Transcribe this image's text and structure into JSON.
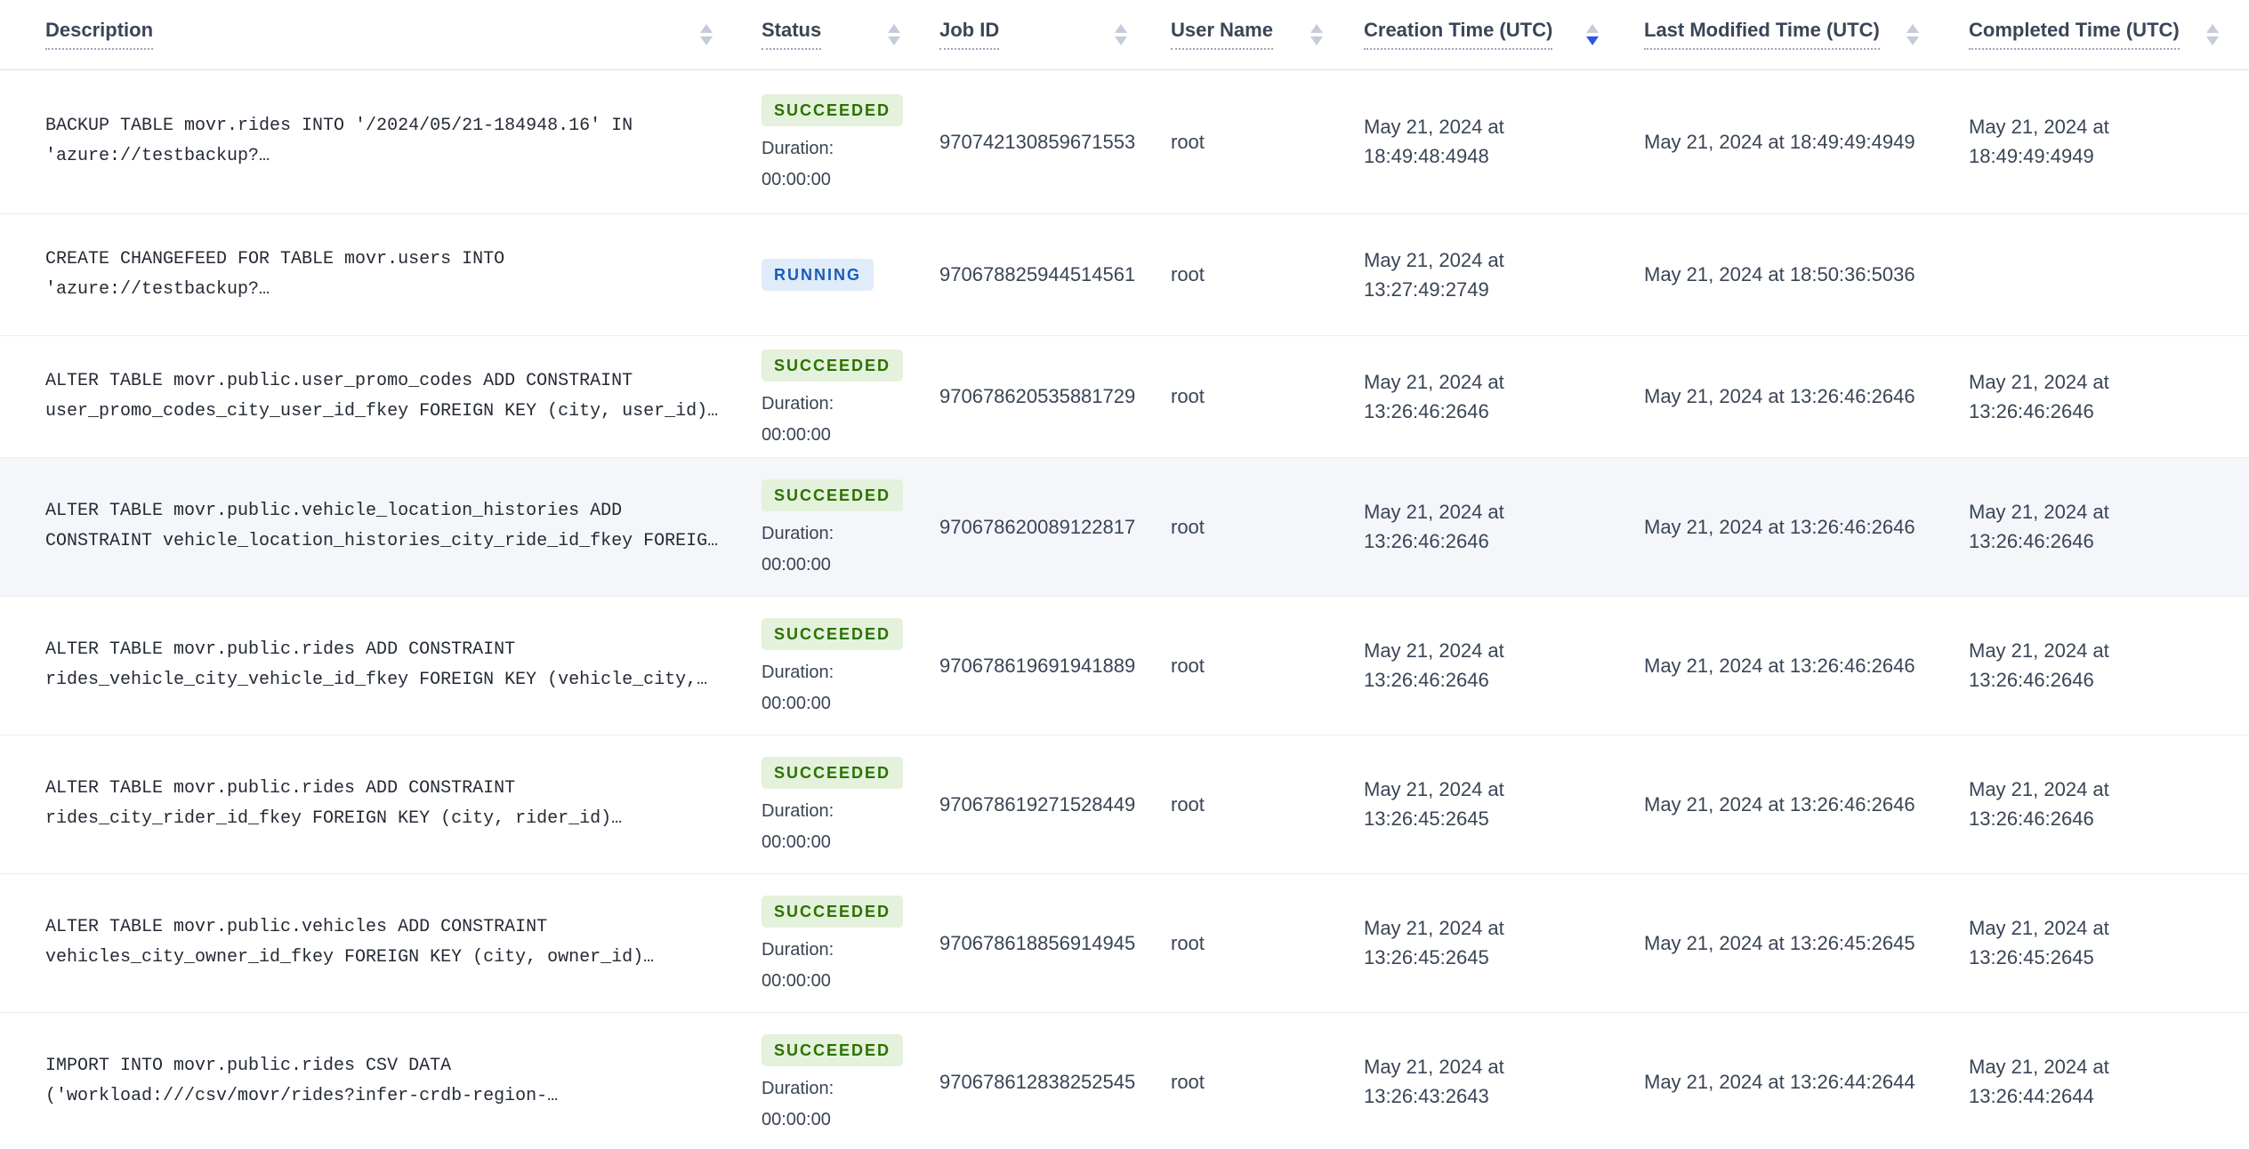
{
  "table": {
    "columns": [
      {
        "label": "Description"
      },
      {
        "label": "Status"
      },
      {
        "label": "Job ID"
      },
      {
        "label": "User Name"
      },
      {
        "label": "Creation Time (UTC)"
      },
      {
        "label": "Last Modified Time (UTC)"
      },
      {
        "label": "Completed Time (UTC)"
      }
    ],
    "sort": {
      "active_column": "Creation Time (UTC)",
      "direction": "desc"
    },
    "rows": [
      {
        "desc1": "BACKUP TABLE movr.rides INTO '/2024/05/21-184948.16' IN",
        "desc2": "'azure://testbackup?…",
        "status": "SUCCEEDED",
        "duration_label": "Duration:",
        "duration_value": "00:00:00",
        "job_id": "970742130859671553",
        "user": "root",
        "created": "May 21, 2024 at 18:49:48:4948",
        "modified": "May 21, 2024 at 18:49:49:4949",
        "completed": "May 21, 2024 at 18:49:49:4949"
      },
      {
        "desc1": "CREATE CHANGEFEED FOR TABLE movr.users INTO",
        "desc2": "'azure://testbackup?…",
        "status": "RUNNING",
        "duration_label": "",
        "duration_value": "",
        "job_id": "970678825944514561",
        "user": "root",
        "created": "May 21, 2024 at 13:27:49:2749",
        "modified": "May 21, 2024 at 18:50:36:5036",
        "completed": ""
      },
      {
        "desc1": "ALTER TABLE movr.public.user_promo_codes ADD CONSTRAINT",
        "desc2": "user_promo_codes_city_user_id_fkey FOREIGN KEY (city, user_id)…",
        "status": "SUCCEEDED",
        "duration_label": "Duration:",
        "duration_value": "00:00:00",
        "job_id": "970678620535881729",
        "user": "root",
        "created": "May 21, 2024 at 13:26:46:2646",
        "modified": "May 21, 2024 at 13:26:46:2646",
        "completed": "May 21, 2024 at 13:26:46:2646"
      },
      {
        "desc1": "ALTER TABLE movr.public.vehicle_location_histories ADD",
        "desc2": "CONSTRAINT vehicle_location_histories_city_ride_id_fkey FOREIG…",
        "status": "SUCCEEDED",
        "duration_label": "Duration:",
        "duration_value": "00:00:00",
        "job_id": "970678620089122817",
        "user": "root",
        "created": "May 21, 2024 at 13:26:46:2646",
        "modified": "May 21, 2024 at 13:26:46:2646",
        "completed": "May 21, 2024 at 13:26:46:2646"
      },
      {
        "desc1": "ALTER TABLE movr.public.rides ADD CONSTRAINT",
        "desc2": "rides_vehicle_city_vehicle_id_fkey FOREIGN KEY (vehicle_city,…",
        "status": "SUCCEEDED",
        "duration_label": "Duration:",
        "duration_value": "00:00:00",
        "job_id": "970678619691941889",
        "user": "root",
        "created": "May 21, 2024 at 13:26:46:2646",
        "modified": "May 21, 2024 at 13:26:46:2646",
        "completed": "May 21, 2024 at 13:26:46:2646"
      },
      {
        "desc1": "ALTER TABLE movr.public.rides ADD CONSTRAINT",
        "desc2": "rides_city_rider_id_fkey FOREIGN KEY (city, rider_id)…",
        "status": "SUCCEEDED",
        "duration_label": "Duration:",
        "duration_value": "00:00:00",
        "job_id": "970678619271528449",
        "user": "root",
        "created": "May 21, 2024 at 13:26:45:2645",
        "modified": "May 21, 2024 at 13:26:46:2646",
        "completed": "May 21, 2024 at 13:26:46:2646"
      },
      {
        "desc1": "ALTER TABLE movr.public.vehicles ADD CONSTRAINT",
        "desc2": "vehicles_city_owner_id_fkey FOREIGN KEY (city, owner_id)…",
        "status": "SUCCEEDED",
        "duration_label": "Duration:",
        "duration_value": "00:00:00",
        "job_id": "970678618856914945",
        "user": "root",
        "created": "May 21, 2024 at 13:26:45:2645",
        "modified": "May 21, 2024 at 13:26:45:2645",
        "completed": "May 21, 2024 at 13:26:45:2645"
      },
      {
        "desc1": "IMPORT INTO movr.public.rides CSV DATA",
        "desc2": "('workload:///csv/movr/rides?infer-crdb-region-…",
        "status": "SUCCEEDED",
        "duration_label": "Duration:",
        "duration_value": "00:00:00",
        "job_id": "970678612838252545",
        "user": "root",
        "created": "May 21, 2024 at 13:26:43:2643",
        "modified": "May 21, 2024 at 13:26:44:2644",
        "completed": "May 21, 2024 at 13:26:44:2644"
      }
    ]
  },
  "colors": {
    "succeeded_text": "#2b7200",
    "succeeded_bg": "#e4f1dc",
    "running_text": "#1a5cb5",
    "running_bg": "#e1ecfa",
    "sort_active": "#2a55e8",
    "row_highlight": "#f4f6fa"
  }
}
